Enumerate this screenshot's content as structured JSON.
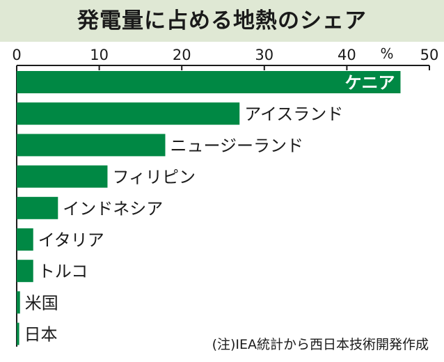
{
  "chart_data": {
    "type": "bar",
    "orientation": "horizontal",
    "title": "発電量に占める地熱のシェア",
    "unit": "%",
    "xlim": [
      0,
      50
    ],
    "xticks": [
      0,
      10,
      20,
      30,
      40,
      50
    ],
    "categories": [
      "ケニア",
      "アイスランド",
      "ニュージーランド",
      "フィリピン",
      "インドネシア",
      "イタリア",
      "トルコ",
      "米国",
      "日本"
    ],
    "values": [
      46.5,
      27,
      18,
      11,
      5,
      2,
      2,
      0.4,
      0.3
    ],
    "bar_color": "#008844",
    "grid": false,
    "note": "(注)IEA統計から西日本技術開発作成"
  }
}
